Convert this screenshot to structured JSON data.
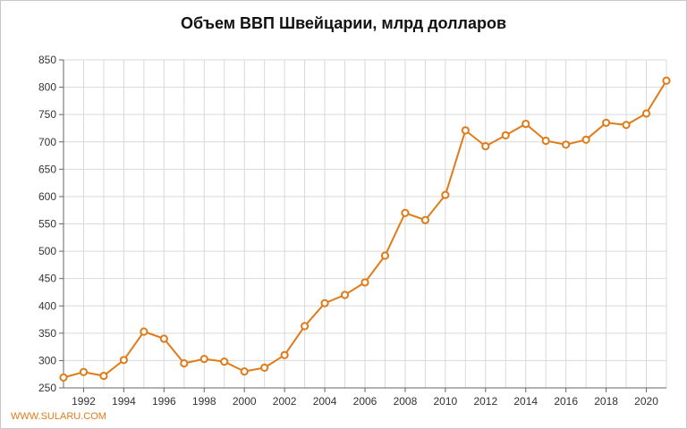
{
  "chart_data": {
    "type": "line",
    "title": "Объем ВВП Швейцарии, млрд долларов",
    "xlabel": "",
    "ylabel": "",
    "x": [
      1991,
      1992,
      1993,
      1994,
      1995,
      1996,
      1997,
      1998,
      1999,
      2000,
      2001,
      2002,
      2003,
      2004,
      2005,
      2006,
      2007,
      2008,
      2009,
      2010,
      2011,
      2012,
      2013,
      2014,
      2015,
      2016,
      2017,
      2018,
      2019,
      2020,
      2021
    ],
    "series": [
      {
        "values": [
          269,
          279,
          272,
          301,
          353,
          340,
          295,
          303,
          298,
          280,
          287,
          310,
          363,
          405,
          420,
          443,
          492,
          570,
          557,
          603,
          721,
          692,
          712,
          733,
          702,
          695,
          704,
          735,
          731,
          752,
          812
        ]
      }
    ],
    "ylim": [
      250,
      850
    ],
    "yticks": [
      250,
      300,
      350,
      400,
      450,
      500,
      550,
      600,
      650,
      700,
      750,
      800,
      850
    ],
    "xticks": [
      1992,
      1994,
      1996,
      1998,
      2000,
      2002,
      2004,
      2006,
      2008,
      2010,
      2012,
      2014,
      2016,
      2018,
      2020
    ],
    "grid": true,
    "line_color": "#e07b1a",
    "marker_fill": "#ffffff"
  },
  "watermark": "WWW.SULARU.COM"
}
